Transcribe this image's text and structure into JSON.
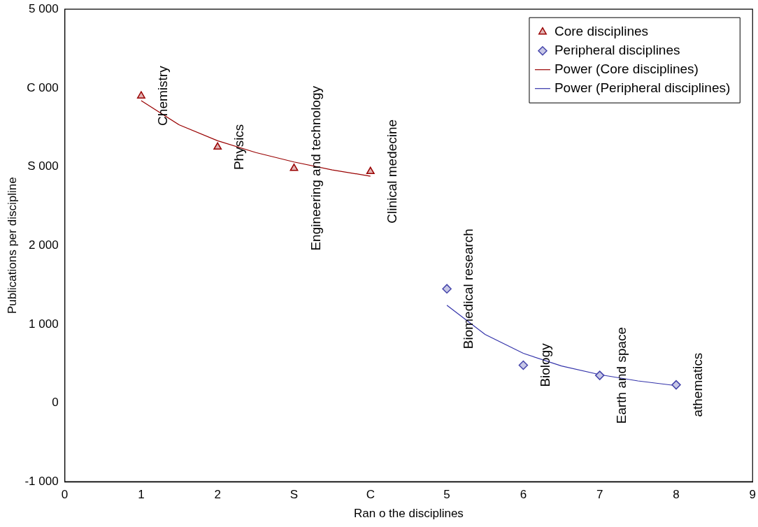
{
  "chart_data": {
    "type": "scatter",
    "xlabel": "Ran o the disciplines",
    "ylabel": "Publications per discipline",
    "xlim": [
      0,
      9
    ],
    "xticks": [
      0,
      1,
      2,
      {
        "value": 3,
        "label": "S"
      },
      {
        "value": 4,
        "label": "C"
      },
      5,
      6,
      7,
      8,
      9
    ],
    "ylim": [
      -1000,
      5000
    ],
    "yticks": [
      {
        "value": -1000,
        "label": "-1 000"
      },
      0,
      {
        "value": 1000,
        "label": "1 000"
      },
      {
        "value": 2000,
        "label": "2 000"
      },
      {
        "value": 3000,
        "label": "S 000"
      },
      {
        "value": 4000,
        "label": "C 000"
      },
      {
        "value": 5000,
        "label": "5 000"
      }
    ],
    "grid": false,
    "legend": "top right",
    "series": [
      {
        "name": "Core disciplines",
        "marker": "triangle",
        "color": "#990000",
        "x": [
          1,
          2,
          3,
          4
        ],
        "values": [
          3900,
          3250,
          2980,
          2940
        ]
      },
      {
        "name": "Peripheral disciplines",
        "marker": "diamond",
        "color": "#4444aa",
        "x": [
          5,
          6,
          7,
          8
        ],
        "values": [
          1450,
          480,
          350,
          230
        ]
      },
      {
        "name": "Power (Core disciplines)",
        "type": "line",
        "marker": "none",
        "color": "#990000",
        "x": [
          1,
          1.5,
          2,
          2.5,
          3,
          3.5,
          4
        ],
        "values": [
          3840,
          3530,
          3330,
          3180,
          3060,
          2960,
          2880
        ]
      },
      {
        "name": "Power (Peripheral disciplines)",
        "type": "line",
        "marker": "none",
        "color": "#3333aa",
        "x": [
          5,
          5.5,
          6,
          6.5,
          7,
          7.5,
          8
        ],
        "values": [
          1240,
          870,
          630,
          470,
          360,
          280,
          220
        ]
      }
    ],
    "annotations": [
      {
        "text": "Chemistry",
        "x": 1,
        "y": 3900
      },
      {
        "text": "Physics",
        "x": 2,
        "y": 3250
      },
      {
        "text": "Engineering and technology",
        "x": 3,
        "y": 2980
      },
      {
        "text": "Clinical medecine",
        "x": 4,
        "y": 2940
      },
      {
        "text": "Biomedical research",
        "x": 5,
        "y": 1450
      },
      {
        "text": "Biology",
        "x": 6,
        "y": 480
      },
      {
        "text": "Earth and space",
        "x": 7,
        "y": 350
      },
      {
        "text": "athematics",
        "x": 8,
        "y": 230
      }
    ]
  }
}
